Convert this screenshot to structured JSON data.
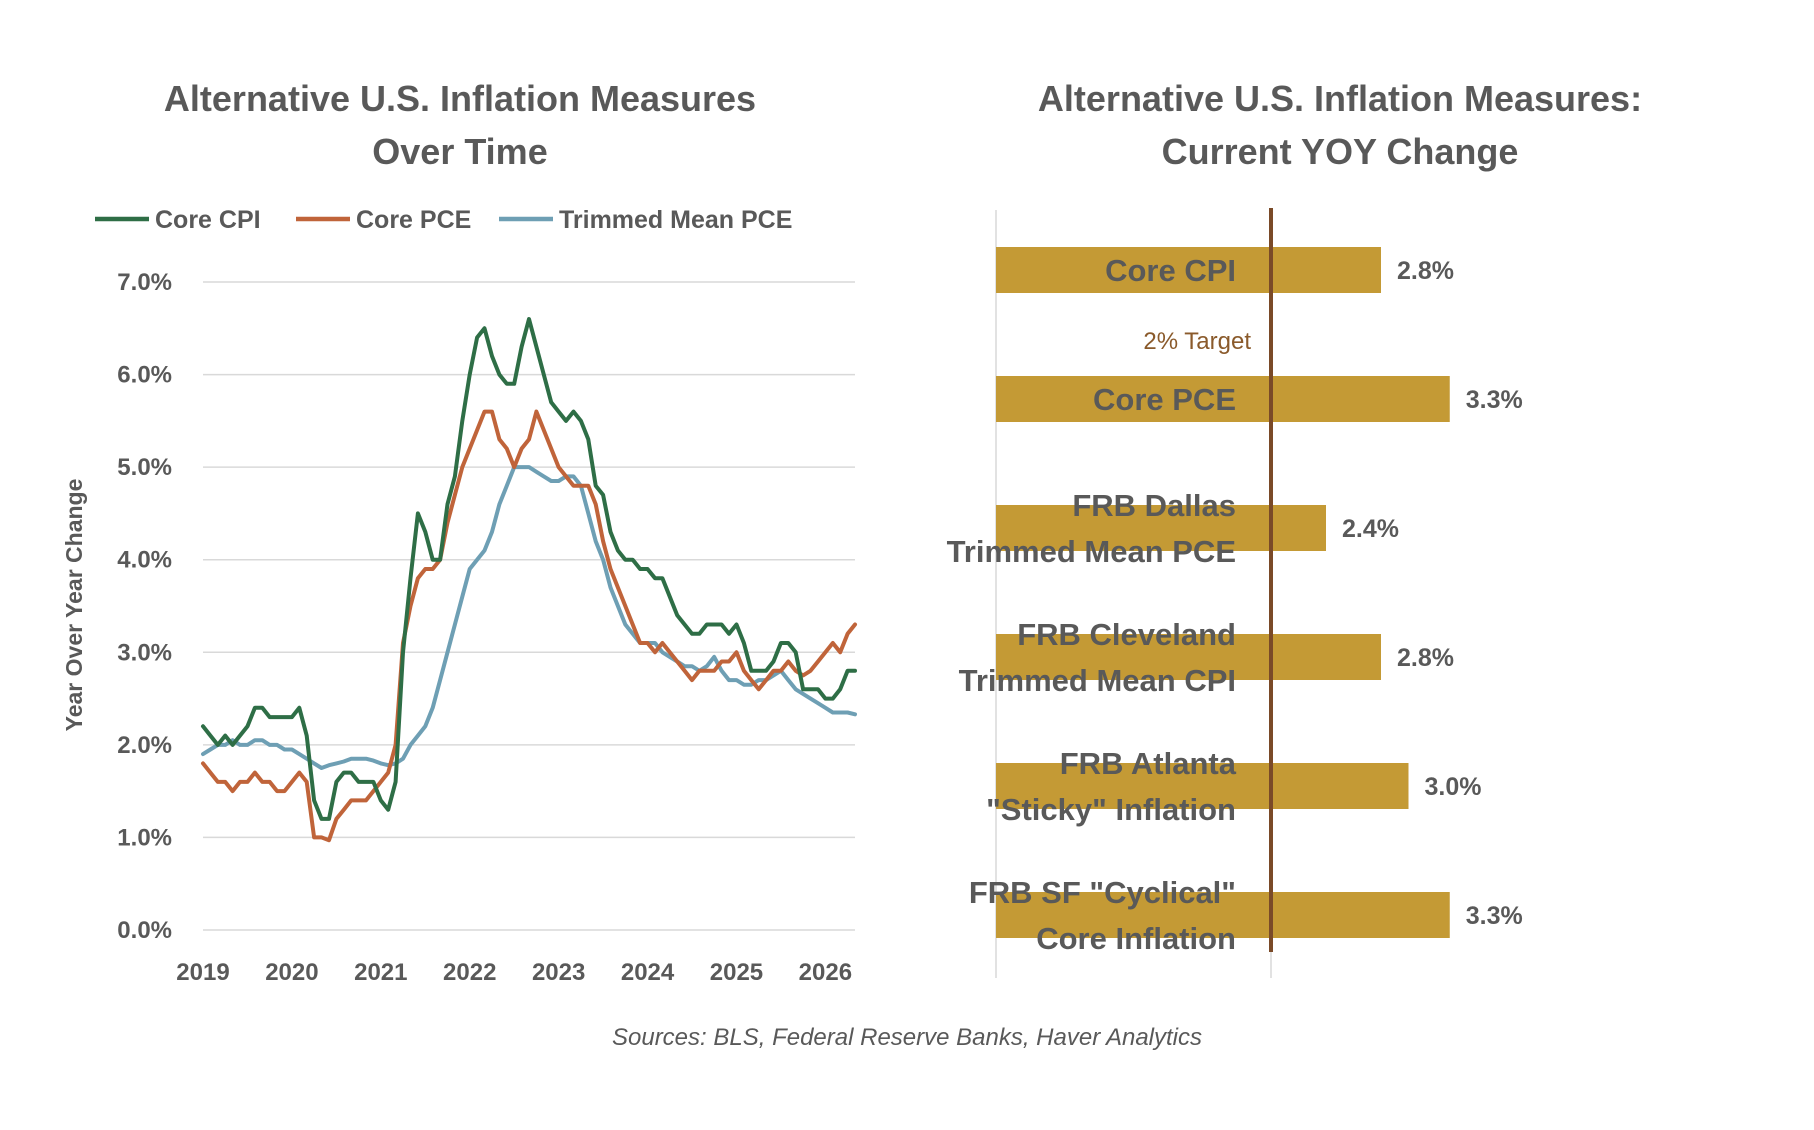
{
  "chart_data": [
    {
      "type": "line",
      "title": "Alternative U.S. Inflation Measures Over Time",
      "title_lines": [
        "Alternative U.S. Inflation Measures",
        "Over Time"
      ],
      "xlabel": "",
      "ylabel": "Year Over Year Change",
      "x_ticks": [
        "2019",
        "2020",
        "2021",
        "2022",
        "2023",
        "2024",
        "2025",
        "2026"
      ],
      "y_ticks": [
        "0.0%",
        "1.0%",
        "2.0%",
        "3.0%",
        "4.0%",
        "5.0%",
        "6.0%",
        "7.0%"
      ],
      "ylim": [
        0,
        7
      ],
      "xlim": [
        "2019-01",
        "2026-05"
      ],
      "grid": true,
      "legend_position": "top",
      "x": [
        "2019-01",
        "2019-02",
        "2019-03",
        "2019-04",
        "2019-05",
        "2019-06",
        "2019-07",
        "2019-08",
        "2019-09",
        "2019-10",
        "2019-11",
        "2019-12",
        "2020-01",
        "2020-02",
        "2020-03",
        "2020-04",
        "2020-05",
        "2020-06",
        "2020-07",
        "2020-08",
        "2020-09",
        "2020-10",
        "2020-11",
        "2020-12",
        "2021-01",
        "2021-02",
        "2021-03",
        "2021-04",
        "2021-05",
        "2021-06",
        "2021-07",
        "2021-08",
        "2021-09",
        "2021-10",
        "2021-11",
        "2021-12",
        "2022-01",
        "2022-02",
        "2022-03",
        "2022-04",
        "2022-05",
        "2022-06",
        "2022-07",
        "2022-08",
        "2022-09",
        "2022-10",
        "2022-11",
        "2022-12",
        "2023-01",
        "2023-02",
        "2023-03",
        "2023-04",
        "2023-05",
        "2023-06",
        "2023-07",
        "2023-08",
        "2023-09",
        "2023-10",
        "2023-11",
        "2023-12",
        "2024-01",
        "2024-02",
        "2024-03",
        "2024-04",
        "2024-05",
        "2024-06",
        "2024-07",
        "2024-08",
        "2024-09",
        "2024-10",
        "2024-11",
        "2024-12",
        "2025-01",
        "2025-02",
        "2025-03",
        "2025-04",
        "2025-05",
        "2025-06",
        "2025-07",
        "2025-08",
        "2025-09",
        "2025-10",
        "2025-11",
        "2025-12",
        "2026-01",
        "2026-02",
        "2026-03",
        "2026-04",
        "2026-05"
      ],
      "series": [
        {
          "name": "Core CPI",
          "color": "#2e6e46",
          "values": [
            2.2,
            2.1,
            2.0,
            2.1,
            2.0,
            2.1,
            2.2,
            2.4,
            2.4,
            2.3,
            2.3,
            2.3,
            2.3,
            2.4,
            2.1,
            1.4,
            1.2,
            1.2,
            1.6,
            1.7,
            1.7,
            1.6,
            1.6,
            1.6,
            1.4,
            1.3,
            1.6,
            3.0,
            3.8,
            4.5,
            4.3,
            4.0,
            4.0,
            4.6,
            4.9,
            5.5,
            6.0,
            6.4,
            6.5,
            6.2,
            6.0,
            5.9,
            5.9,
            6.3,
            6.6,
            6.3,
            6.0,
            5.7,
            5.6,
            5.5,
            5.6,
            5.5,
            5.3,
            4.8,
            4.7,
            4.3,
            4.1,
            4.0,
            4.0,
            3.9,
            3.9,
            3.8,
            3.8,
            3.6,
            3.4,
            3.3,
            3.2,
            3.2,
            3.3,
            3.3,
            3.3,
            3.2,
            3.3,
            3.1,
            2.8,
            2.8,
            2.8,
            2.9,
            3.1,
            3.1,
            3.0,
            2.6,
            2.6,
            2.6,
            2.5,
            2.5,
            2.6,
            2.8,
            2.8
          ]
        },
        {
          "name": "Core PCE",
          "color": "#c0643a",
          "values": [
            1.8,
            1.7,
            1.6,
            1.6,
            1.5,
            1.6,
            1.6,
            1.7,
            1.6,
            1.6,
            1.5,
            1.5,
            1.6,
            1.7,
            1.6,
            1.0,
            1.0,
            0.97,
            1.2,
            1.3,
            1.4,
            1.4,
            1.4,
            1.5,
            1.6,
            1.7,
            2.0,
            3.1,
            3.5,
            3.8,
            3.9,
            3.9,
            4.0,
            4.4,
            4.7,
            5.0,
            5.2,
            5.4,
            5.6,
            5.6,
            5.3,
            5.2,
            5.0,
            5.2,
            5.3,
            5.6,
            5.4,
            5.2,
            5.0,
            4.9,
            4.8,
            4.8,
            4.8,
            4.6,
            4.2,
            3.9,
            3.7,
            3.5,
            3.3,
            3.1,
            3.1,
            3.0,
            3.1,
            3.0,
            2.9,
            2.8,
            2.7,
            2.8,
            2.8,
            2.8,
            2.9,
            2.9,
            3.0,
            2.8,
            2.7,
            2.6,
            2.7,
            2.8,
            2.8,
            2.9,
            2.8,
            2.75,
            2.8,
            2.9,
            3.0,
            3.1,
            3.0,
            3.2,
            3.3
          ]
        },
        {
          "name": "Trimmed Mean PCE",
          "color": "#6e9fb4",
          "values": [
            1.9,
            1.95,
            2.0,
            2.0,
            2.05,
            2.0,
            2.0,
            2.05,
            2.05,
            2.0,
            2.0,
            1.95,
            1.95,
            1.9,
            1.85,
            1.8,
            1.75,
            1.78,
            1.8,
            1.82,
            1.85,
            1.85,
            1.85,
            1.83,
            1.8,
            1.78,
            1.8,
            1.85,
            2.0,
            2.1,
            2.2,
            2.4,
            2.7,
            3.0,
            3.3,
            3.6,
            3.9,
            4.0,
            4.1,
            4.3,
            4.6,
            4.8,
            5.0,
            5.0,
            5.0,
            4.95,
            4.9,
            4.85,
            4.85,
            4.9,
            4.9,
            4.8,
            4.5,
            4.2,
            4.0,
            3.7,
            3.5,
            3.3,
            3.2,
            3.1,
            3.1,
            3.1,
            3.0,
            2.95,
            2.9,
            2.85,
            2.85,
            2.8,
            2.85,
            2.95,
            2.8,
            2.7,
            2.7,
            2.65,
            2.65,
            2.7,
            2.7,
            2.75,
            2.8,
            2.7,
            2.6,
            2.55,
            2.5,
            2.45,
            2.4,
            2.35,
            2.35,
            2.35,
            2.33
          ]
        }
      ]
    },
    {
      "type": "bar",
      "orientation": "horizontal",
      "title": "Alternative U.S. Inflation Measures: Current YOY Change",
      "title_lines": [
        "Alternative U.S. Inflation Measures:",
        "Current YOY Change"
      ],
      "categories": [
        [
          "Core CPI"
        ],
        [
          "Core PCE"
        ],
        [
          "FRB Dallas",
          "Trimmed Mean PCE"
        ],
        [
          "FRB Cleveland",
          "Trimmed Mean CPI"
        ],
        [
          "FRB Atlanta",
          "\"Sticky\" Inflation"
        ],
        [
          "FRB SF \"Cyclical\"",
          "Core Inflation"
        ]
      ],
      "values": [
        2.8,
        3.3,
        2.4,
        2.8,
        3.0,
        3.3
      ],
      "value_labels": [
        "2.8%",
        "3.3%",
        "2.4%",
        "2.8%",
        "3.0%",
        "3.3%"
      ],
      "xlim": [
        0,
        4
      ],
      "bar_color": "#c49a35",
      "reference_line": {
        "value": 2.0,
        "label": "2% Target",
        "color": "#7a4a28",
        "label_color": "#8a5a2b"
      }
    }
  ],
  "footer": {
    "source": "Sources: BLS, Federal Reserve Banks, Haver Analytics"
  }
}
